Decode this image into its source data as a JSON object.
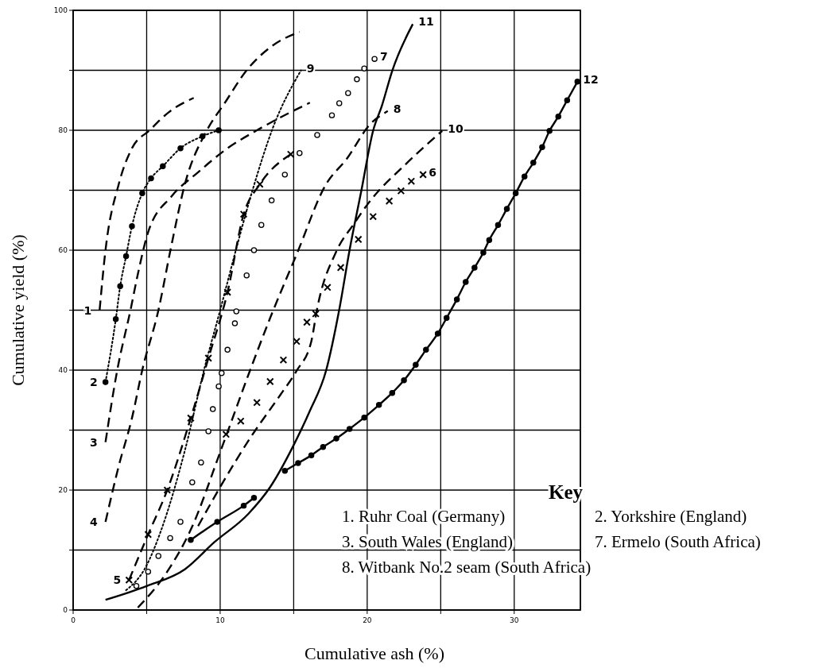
{
  "chart_data": {
    "type": "line",
    "xlabel": "Cumulative ash (%)",
    "ylabel": "Cumulative yield (%)",
    "xlim": [
      0,
      34.5
    ],
    "ylim": [
      0,
      100
    ],
    "xticks": [
      0,
      {
        "value": 5,
        "label": null
      },
      10,
      {
        "value": 15,
        "label": null
      },
      20,
      {
        "value": 25,
        "label": null
      },
      30
    ],
    "yticks": [
      0,
      {
        "value": 10,
        "label": null
      },
      20,
      {
        "value": 30,
        "label": null
      },
      40,
      {
        "value": 50,
        "label": null
      },
      60,
      {
        "value": 70,
        "label": null
      },
      80,
      {
        "value": 90,
        "label": null
      },
      100
    ],
    "grid": true,
    "annotations": [
      "Key",
      "1. Ruhr Coal (Germany)",
      "2. Yorkshire (England)",
      "3. South Wales (England)",
      "7. Ermelo (South Africa)",
      "8. Witbank No.2 seam (South Africa)"
    ],
    "series": [
      {
        "name": "1",
        "color": "#000000",
        "line_style": "dashed",
        "x": [
          1.8,
          2.2,
          3.1,
          4.0,
          5.2,
          6.5,
          8.2
        ],
        "values": [
          50,
          60,
          71,
          77,
          80,
          83,
          85.4
        ]
      },
      {
        "name": "2",
        "color": "#000000",
        "line_style": "dotted",
        "marker": "circle",
        "x": [
          2.2,
          2.9,
          3.2,
          3.6,
          4.0,
          4.7,
          5.3,
          6.1,
          7.3,
          8.8,
          9.9
        ],
        "values": [
          38,
          48.5,
          54,
          59,
          64,
          69.5,
          72,
          74,
          77,
          79,
          80
        ]
      },
      {
        "name": "3",
        "color": "#000000",
        "line_style": "dashed",
        "x": [
          2.2,
          3.0,
          3.9,
          4.4,
          5.1,
          6.7,
          8.5,
          10.5,
          12.5,
          16.1
        ],
        "values": [
          28,
          40,
          50,
          56,
          63,
          69,
          73,
          77,
          80,
          84.6
        ]
      },
      {
        "name": "4",
        "color": "#000000",
        "line_style": "dashed",
        "x": [
          2.2,
          3.1,
          4.0,
          4.7,
          5.8,
          6.7,
          7.6,
          9.1,
          10.3,
          11.8,
          13.5,
          15.4
        ],
        "values": [
          14.7,
          24,
          32,
          40,
          50,
          61,
          71,
          80,
          84.5,
          90,
          94,
          96.4
        ]
      },
      {
        "name": "5",
        "color": "#000000",
        "line_style": "dashed",
        "marker": "cross",
        "x": [
          3.8,
          5.1,
          6.4,
          8.0,
          9.2,
          10.5,
          11.6,
          12.7,
          14.8
        ],
        "values": [
          5,
          12.6,
          20,
          32,
          42,
          53,
          66,
          71,
          76
        ]
      },
      {
        "name": "6",
        "type": "scatter",
        "color": "#000000",
        "marker": "cross",
        "x": [
          10.4,
          11.4,
          12.5,
          13.4,
          14.3,
          15.2,
          15.9,
          16.5,
          17.3,
          18.2,
          19.4,
          20.4,
          21.5,
          22.3,
          23.0,
          23.8
        ],
        "values": [
          29.3,
          31.5,
          34.6,
          38.1,
          41.7,
          44.8,
          48,
          49.4,
          53.8,
          57.1,
          61.8,
          65.6,
          68.2,
          69.9,
          71.5,
          72.6
        ]
      },
      {
        "name": "7",
        "type": "scatter",
        "color": "#000000",
        "marker": "circle",
        "x": [
          4.3,
          5.1,
          5.8,
          6.6,
          7.3,
          8.1,
          8.7,
          9.2,
          9.5,
          9.9,
          10.1,
          10.5,
          11.0,
          11.1,
          11.8,
          12.3,
          12.8,
          13.5,
          14.4,
          15.4,
          16.6,
          17.6,
          18.1,
          18.7,
          19.3,
          19.8,
          20.5
        ],
        "values": [
          4,
          6.4,
          9,
          12,
          14.7,
          21.3,
          24.6,
          29.8,
          33.5,
          37.3,
          39.5,
          43.4,
          47.8,
          49.8,
          55.8,
          60,
          64.2,
          68.3,
          72.6,
          76.2,
          79.2,
          82.5,
          84.5,
          86.2,
          88.5,
          90.3,
          91.9
        ]
      },
      {
        "name": "8",
        "color": "#000000",
        "line_style": "dashed",
        "x": [
          4.4,
          6.4,
          8.0,
          10.1,
          12.1,
          13.4,
          15.2,
          17.2,
          18.6,
          20.2,
          21.4
        ],
        "values": [
          0.4,
          6.4,
          13.4,
          27,
          40.4,
          48.7,
          59.3,
          71,
          75.2,
          81,
          83.2
        ]
      },
      {
        "name": "9",
        "color": "#000000",
        "line_style": "dotted",
        "x": [
          3.6,
          4.9,
          6.0,
          7.6,
          8.9,
          10.0,
          11.1,
          12.2,
          13.6,
          15.5
        ],
        "values": [
          3.3,
          7,
          13.4,
          26.6,
          40,
          50,
          60.3,
          70,
          80.5,
          90
        ]
      },
      {
        "name": "10",
        "color": "#000000",
        "line_style": "dashed",
        "x": [
          8.5,
          10.0,
          12.1,
          14.1,
          15.2,
          16.2,
          16.6,
          17.9,
          19.1,
          20.1,
          22.6,
          25.1
        ],
        "values": [
          14,
          20.5,
          28.9,
          35.9,
          39.9,
          44.8,
          50.3,
          59.8,
          64.4,
          67.9,
          74.3,
          79.9
        ]
      },
      {
        "name": "11",
        "color": "#000000",
        "line_style": "solid",
        "x": [
          2.2,
          5.0,
          7.6,
          9.6,
          11.9,
          13.4,
          15.0,
          16.1,
          17.2,
          18.1,
          18.8,
          19.6,
          20.4,
          21.0,
          21.7,
          23.1
        ],
        "values": [
          1.7,
          4.0,
          6.8,
          11.3,
          16,
          20.5,
          27.5,
          33.2,
          39.9,
          50.1,
          60,
          69.9,
          79.9,
          84.1,
          89.9,
          97.7
        ]
      },
      {
        "name": "12",
        "color": "#000000",
        "line_style": "solid",
        "marker": "circle",
        "x": [
          8.0,
          9.8,
          11.6,
          12.3,
          13.4,
          14.4,
          15.3,
          16.2,
          17.0,
          17.9,
          18.8,
          19.8,
          20.8,
          21.7,
          22.5,
          23.3,
          24.0,
          24.8,
          25.4,
          26.1,
          26.7,
          27.3,
          27.9,
          28.3,
          28.9,
          29.5,
          30.1,
          30.7,
          31.3,
          31.9,
          32.4,
          33.0,
          33.6,
          34.3
        ],
        "values": [
          11.7,
          14.7,
          17.4,
          18.7,
          null,
          23.2,
          24.5,
          25.8,
          27.2,
          28.6,
          30.2,
          32.1,
          34.2,
          36.2,
          38.3,
          40.9,
          43.4,
          46.1,
          48.7,
          51.8,
          54.7,
          57.1,
          59.6,
          61.7,
          64.2,
          66.9,
          69.5,
          72.3,
          74.6,
          77.2,
          79.9,
          82.3,
          85,
          88.1
        ]
      }
    ]
  }
}
